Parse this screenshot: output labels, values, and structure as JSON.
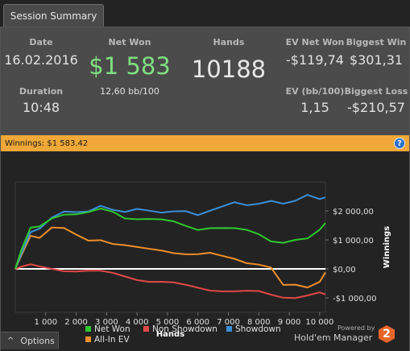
{
  "tab": {
    "label": "Session Summary"
  },
  "stats": {
    "date_label": "Date",
    "date_value": "16.02.2016",
    "duration_label": "Duration",
    "duration_value": "10:48",
    "net_won_label": "Net Won",
    "net_won_value": "$1 583",
    "net_won_rate": "12,60 bb/100",
    "hands_label": "Hands",
    "hands_value": "10188",
    "ev_net_won_label": "EV Net Won",
    "ev_net_won_value": "-$119,74",
    "biggest_win_label": "Biggest Win",
    "biggest_win_value": "$301,31",
    "ev_bb_label": "EV (bb/100)",
    "ev_bb_value": "1,15",
    "biggest_loss_label": "Biggest Loss",
    "biggest_loss_value": "-$210,57"
  },
  "winnings_bar": {
    "text": "Winnings: $1 583.42",
    "help_icon": "question-circle-icon",
    "help_glyph": "?"
  },
  "options": {
    "label": "Options",
    "icon": "chevron-up-icon",
    "glyph": "^"
  },
  "brand": {
    "powered_by": "Powered by",
    "name": "Hold'em Manager",
    "badge": "2"
  },
  "colors": {
    "net_won": "#2ec82e",
    "non_showdown": "#e04848",
    "showdown": "#3a8fd8",
    "all_in_ev": "#ef8f2a",
    "winnings_bar": "#f0a938"
  },
  "chart_data": {
    "type": "line",
    "xlabel": "Hands",
    "ylabel": "Winnings",
    "xlim": [
      0,
      10188
    ],
    "ylim": [
      -1500,
      3000
    ],
    "x_ticks": [
      1000,
      2000,
      3000,
      4000,
      5000,
      6000,
      7000,
      8000,
      9000,
      10000
    ],
    "x_tick_labels": [
      "1 000",
      "2 000",
      "3 000",
      "4 000",
      "5 000",
      "6 000",
      "7 000",
      "8 000",
      "9 000",
      "10 000"
    ],
    "y_ticks": [
      2000,
      1000,
      0,
      -1000
    ],
    "y_tick_labels": [
      "$2 000,00",
      "$1 000,00",
      "$0,00",
      "-$1 000,00"
    ],
    "zero_line": true,
    "legend_position": "bottom",
    "x": [
      0,
      200,
      500,
      800,
      1200,
      1600,
      2000,
      2400,
      2800,
      3200,
      3600,
      4000,
      4400,
      4800,
      5200,
      5600,
      6000,
      6400,
      6800,
      7200,
      7600,
      8000,
      8400,
      8800,
      9200,
      9600,
      10000,
      10188
    ],
    "series": [
      {
        "name": "Net Won",
        "values": [
          0,
          600,
          1400,
          1500,
          1800,
          1900,
          1850,
          1900,
          2050,
          2000,
          1800,
          1750,
          1700,
          1650,
          1600,
          1500,
          1400,
          1450,
          1400,
          1350,
          1300,
          1200,
          1000,
          950,
          1000,
          1000,
          1300,
          1583
        ]
      },
      {
        "name": "Non Showdown",
        "values": [
          0,
          50,
          100,
          50,
          20,
          -20,
          -50,
          -80,
          -120,
          -180,
          -250,
          -330,
          -400,
          -450,
          -520,
          -600,
          -650,
          -700,
          -720,
          -770,
          -800,
          -820,
          -900,
          -950,
          -950,
          -900,
          -850,
          -880
        ]
      },
      {
        "name": "Showdown",
        "values": [
          0,
          500,
          1300,
          1450,
          1800,
          1950,
          1900,
          1950,
          2200,
          2100,
          2000,
          2050,
          1950,
          1900,
          2000,
          2050,
          1900,
          2000,
          2100,
          2250,
          2200,
          2300,
          2400,
          2250,
          2300,
          2500,
          2400,
          2470
        ]
      },
      {
        "name": "All-In EV",
        "values": [
          0,
          500,
          1200,
          1100,
          1400,
          1350,
          1150,
          1000,
          1050,
          900,
          800,
          700,
          650,
          650,
          600,
          550,
          500,
          500,
          400,
          350,
          250,
          200,
          50,
          -600,
          -600,
          -650,
          -400,
          -120
        ]
      }
    ]
  }
}
